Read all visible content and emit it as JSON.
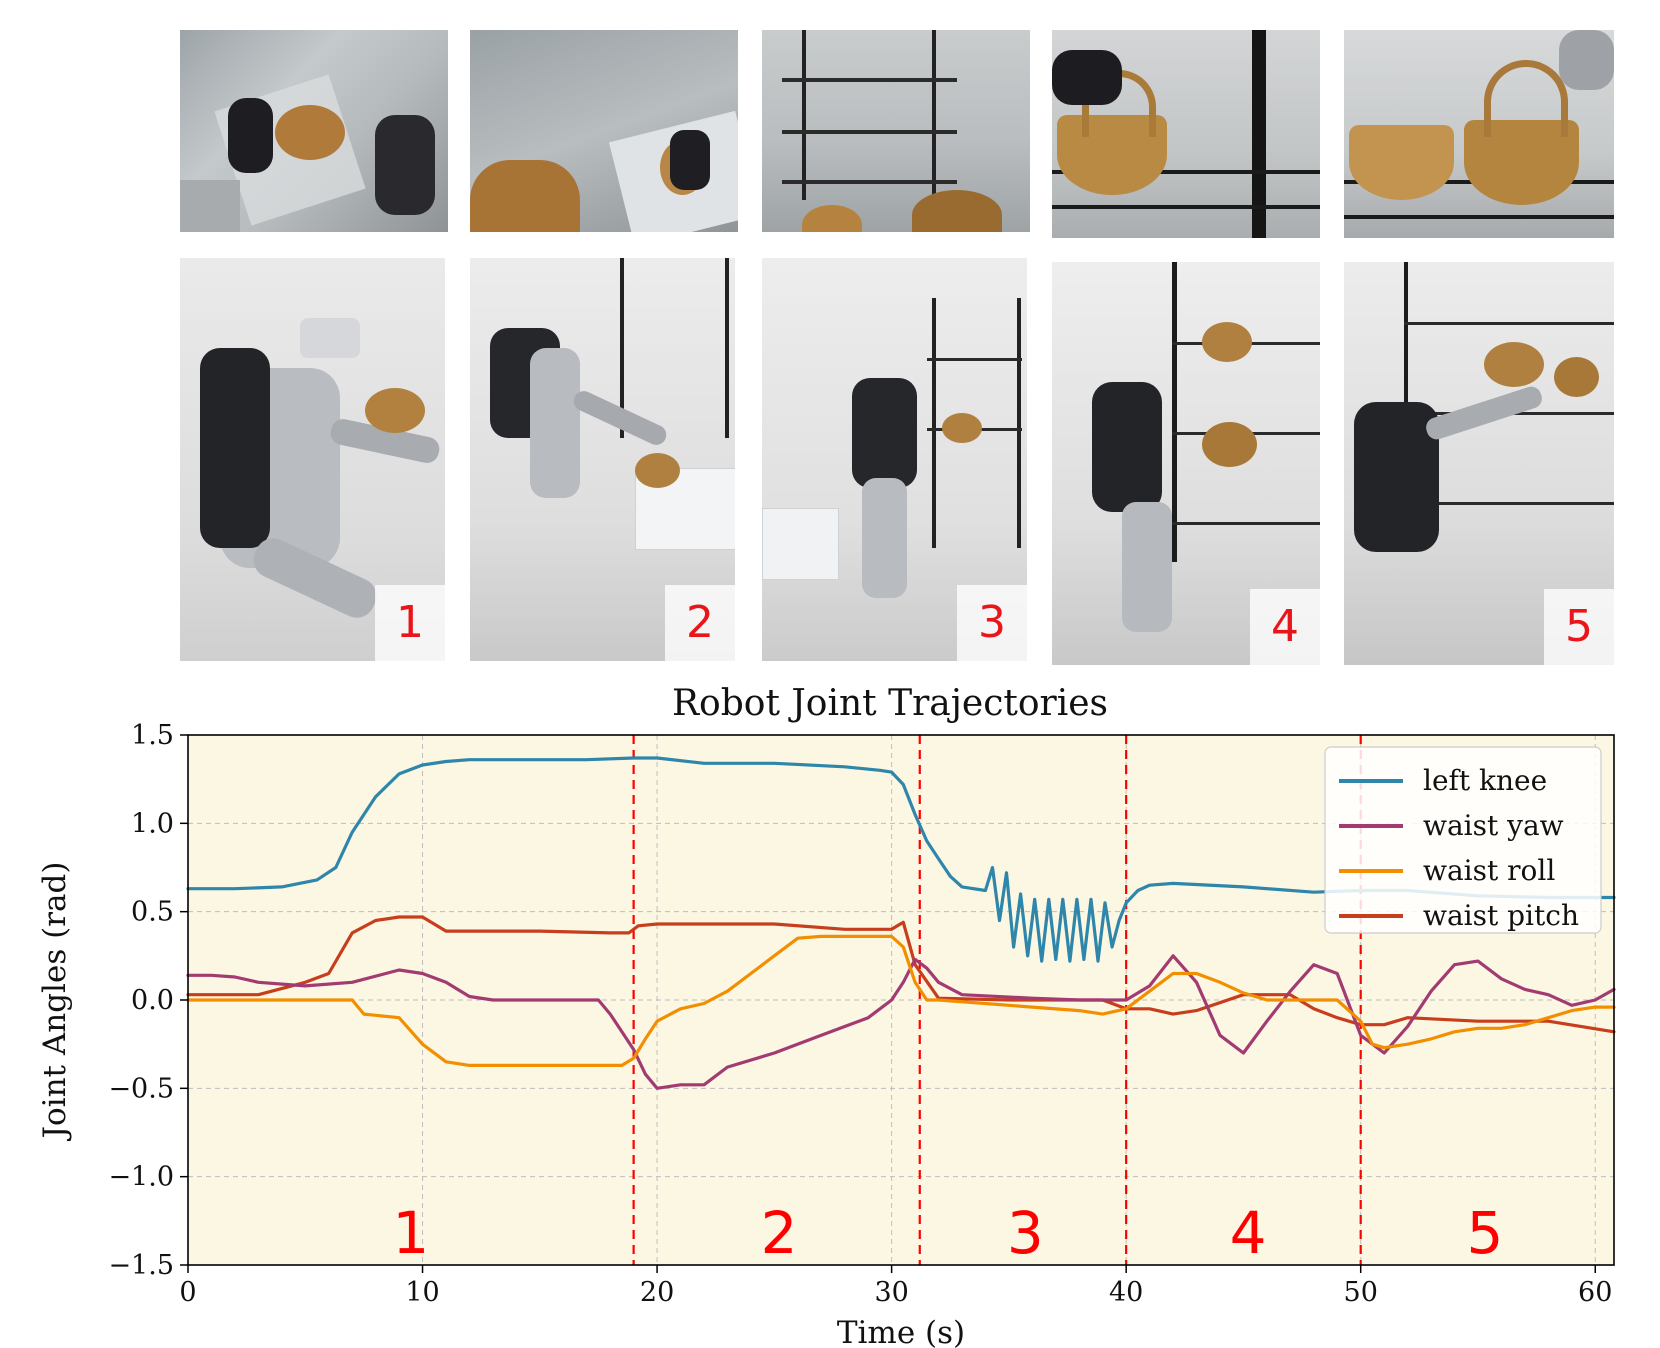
{
  "photos": {
    "top_row": [
      {
        "scene": "egocentric view: hand grasping basket from bin"
      },
      {
        "scene": "egocentric view: carrying basket over floor"
      },
      {
        "scene": "egocentric view: approaching wire shelf"
      },
      {
        "scene": "egocentric view: placing basket on shelf"
      },
      {
        "scene": "egocentric view: two baskets on shelf"
      }
    ],
    "bottom_row": [
      {
        "badge": "1"
      },
      {
        "badge": "2"
      },
      {
        "badge": "3"
      },
      {
        "badge": "4"
      },
      {
        "badge": "5"
      }
    ]
  },
  "colors": {
    "plot_bg": "#fcf7e3",
    "left_knee": "#2e86ab",
    "waist_yaw": "#a23b72",
    "waist_roll": "#f18f01",
    "waist_pitch": "#c73e1d",
    "phase_line": "#ff0000",
    "phase_label": "#ff0000"
  },
  "chart_data": {
    "type": "line",
    "title": "Robot Joint Trajectories",
    "xlabel": "Time (s)",
    "ylabel": "Joint Angles (rad)",
    "xlim": [
      0,
      60.8
    ],
    "ylim": [
      -1.5,
      1.5
    ],
    "xticks": [
      0,
      10,
      20,
      30,
      40,
      50,
      60
    ],
    "yticks": [
      -1.5,
      -1.0,
      -0.5,
      0.0,
      0.5,
      1.0,
      1.5
    ],
    "ytick_labels": [
      "−1.5",
      "−1.0",
      "−0.5",
      "0.0",
      "0.5",
      "1.0",
      "1.5"
    ],
    "grid": true,
    "legend_position": "top-right",
    "phase_boundaries": [
      19.0,
      31.2,
      40.0,
      50.0
    ],
    "phase_labels": [
      {
        "text": "1",
        "x": 9.5
      },
      {
        "text": "2",
        "x": 25.2
      },
      {
        "text": "3",
        "x": 35.7
      },
      {
        "text": "4",
        "x": 45.2
      },
      {
        "text": "5",
        "x": 55.3
      }
    ],
    "series": [
      {
        "name": "left knee",
        "x": [
          0,
          2,
          4,
          5.5,
          6.3,
          7,
          8,
          9,
          10,
          11,
          12,
          15,
          17,
          19,
          20,
          22,
          25,
          28,
          29.5,
          30,
          30.5,
          31,
          31.5,
          32,
          32.5,
          33,
          34,
          34.3,
          34.6,
          34.9,
          35.2,
          35.5,
          35.8,
          36.1,
          36.4,
          36.7,
          37,
          37.3,
          37.6,
          37.9,
          38.2,
          38.5,
          38.8,
          39.1,
          39.4,
          39.7,
          40,
          40.5,
          41,
          42,
          45,
          48,
          50,
          52,
          55,
          58,
          60.8
        ],
        "y": [
          0.63,
          0.63,
          0.64,
          0.68,
          0.75,
          0.95,
          1.15,
          1.28,
          1.33,
          1.35,
          1.36,
          1.36,
          1.36,
          1.37,
          1.37,
          1.34,
          1.34,
          1.32,
          1.3,
          1.29,
          1.22,
          1.05,
          0.9,
          0.8,
          0.7,
          0.64,
          0.62,
          0.75,
          0.45,
          0.72,
          0.3,
          0.6,
          0.25,
          0.57,
          0.22,
          0.57,
          0.23,
          0.57,
          0.22,
          0.57,
          0.23,
          0.57,
          0.22,
          0.55,
          0.3,
          0.45,
          0.55,
          0.62,
          0.65,
          0.66,
          0.64,
          0.61,
          0.62,
          0.62,
          0.59,
          0.58,
          0.58
        ]
      },
      {
        "name": "waist yaw",
        "x": [
          0,
          1,
          2,
          3,
          5,
          7,
          9,
          10,
          11,
          12,
          13,
          15,
          17,
          17.5,
          18,
          18.5,
          19,
          19.5,
          20,
          21,
          22,
          23,
          25,
          27,
          28,
          29,
          30,
          30.5,
          31,
          31.5,
          32,
          33,
          36,
          38,
          40,
          41,
          42,
          43,
          44,
          45,
          46,
          47,
          48,
          49,
          50,
          51,
          52,
          53,
          54,
          55,
          56,
          57,
          58,
          59,
          60,
          60.8
        ],
        "y": [
          0.14,
          0.14,
          0.13,
          0.1,
          0.08,
          0.1,
          0.17,
          0.15,
          0.1,
          0.02,
          0.0,
          0.0,
          0.0,
          0.0,
          -0.08,
          -0.18,
          -0.28,
          -0.42,
          -0.5,
          -0.48,
          -0.48,
          -0.38,
          -0.3,
          -0.2,
          -0.15,
          -0.1,
          0.0,
          0.1,
          0.23,
          0.18,
          0.1,
          0.03,
          0.01,
          0.0,
          0.0,
          0.08,
          0.25,
          0.1,
          -0.2,
          -0.3,
          -0.12,
          0.05,
          0.2,
          0.15,
          -0.2,
          -0.3,
          -0.15,
          0.05,
          0.2,
          0.22,
          0.12,
          0.06,
          0.03,
          -0.03,
          0.0,
          0.06
        ]
      },
      {
        "name": "waist roll",
        "x": [
          0,
          2,
          5,
          7,
          7.5,
          9,
          10,
          11,
          12,
          15,
          17,
          18.5,
          19,
          19.5,
          20,
          21,
          22,
          23,
          24,
          25,
          26,
          27,
          28,
          29,
          30,
          30.5,
          31,
          31.5,
          32,
          34,
          36,
          38,
          39,
          40,
          41,
          42,
          43,
          44,
          45,
          46,
          47,
          48,
          49,
          50,
          50.5,
          51,
          52,
          53,
          54,
          55,
          56,
          57,
          58,
          59,
          60,
          60.8
        ],
        "y": [
          0.0,
          0.0,
          0.0,
          0.0,
          -0.08,
          -0.1,
          -0.25,
          -0.35,
          -0.37,
          -0.37,
          -0.37,
          -0.37,
          -0.33,
          -0.22,
          -0.12,
          -0.05,
          -0.02,
          0.05,
          0.15,
          0.25,
          0.35,
          0.36,
          0.36,
          0.36,
          0.36,
          0.3,
          0.1,
          0.0,
          0.0,
          -0.02,
          -0.04,
          -0.06,
          -0.08,
          -0.05,
          0.05,
          0.15,
          0.15,
          0.1,
          0.04,
          0.0,
          0.0,
          0.0,
          0.0,
          -0.12,
          -0.25,
          -0.27,
          -0.25,
          -0.22,
          -0.18,
          -0.16,
          -0.16,
          -0.14,
          -0.1,
          -0.06,
          -0.04,
          -0.04
        ]
      },
      {
        "name": "waist pitch",
        "x": [
          0,
          2,
          3,
          5,
          6,
          7,
          8,
          9,
          10,
          11,
          15,
          18,
          18.8,
          19.2,
          20,
          25,
          28,
          29.5,
          30,
          30.5,
          31,
          32,
          35,
          38,
          39,
          40,
          41,
          42,
          43,
          45,
          47,
          48,
          49,
          50,
          51,
          52,
          55,
          58,
          60.8
        ],
        "y": [
          0.03,
          0.03,
          0.03,
          0.1,
          0.15,
          0.38,
          0.45,
          0.47,
          0.47,
          0.39,
          0.39,
          0.38,
          0.38,
          0.42,
          0.43,
          0.43,
          0.4,
          0.4,
          0.4,
          0.44,
          0.2,
          0.01,
          0.0,
          0.0,
          0.0,
          -0.05,
          -0.05,
          -0.08,
          -0.06,
          0.03,
          0.03,
          -0.05,
          -0.1,
          -0.14,
          -0.14,
          -0.1,
          -0.12,
          -0.12,
          -0.18
        ]
      }
    ]
  }
}
